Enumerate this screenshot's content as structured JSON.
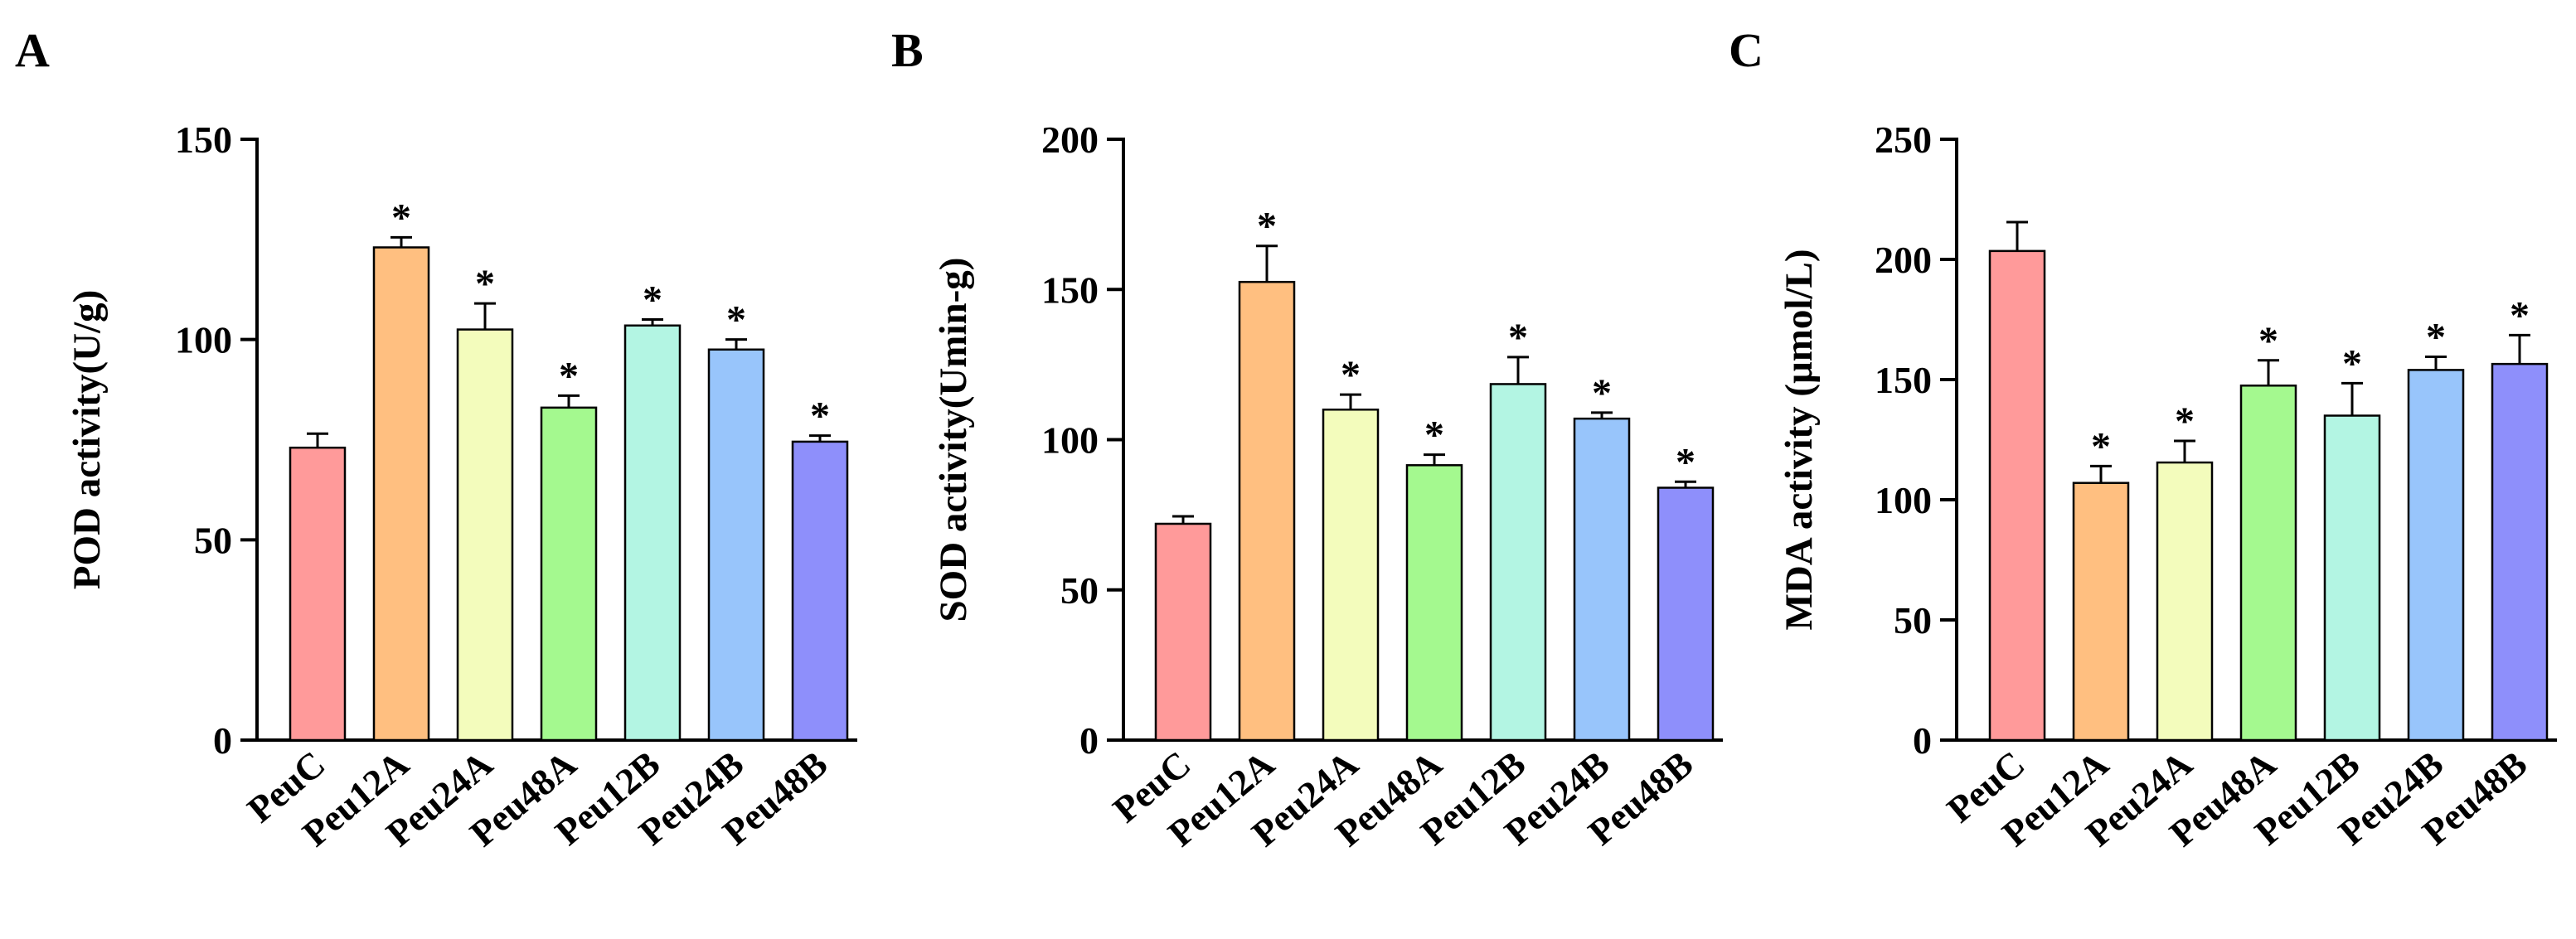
{
  "chart_data": [
    {
      "panel": "A",
      "type": "bar",
      "title": "",
      "xlabel": "",
      "ylabel": "POD activity(U/g)",
      "ylim": [
        0,
        150
      ],
      "yticks": [
        0,
        50,
        100,
        150
      ],
      "categories": [
        "PeuC",
        "Peu12A",
        "Peu24A",
        "Peu48A",
        "Peu12B",
        "Peu24B",
        "Peu48B"
      ],
      "values": [
        73,
        123,
        102.5,
        83,
        103.5,
        97.5,
        74.5
      ],
      "errors": [
        3.5,
        2.5,
        6.5,
        3,
        1.5,
        2.5,
        1.5
      ],
      "significance": [
        "",
        "*",
        "*",
        "*",
        "*",
        "*",
        "*"
      ],
      "colors": [
        "#ff9a9a",
        "#ffbf80",
        "#f3fcbc",
        "#a4f98f",
        "#b3f5e3",
        "#98c5fb",
        "#8e8ffb"
      ]
    },
    {
      "panel": "B",
      "type": "bar",
      "title": "",
      "xlabel": "",
      "ylabel": "SOD activity(Umin-g)",
      "ylim": [
        0,
        200
      ],
      "yticks": [
        0,
        50,
        100,
        150,
        200
      ],
      "categories": [
        "PeuC",
        "Peu12A",
        "Peu24A",
        "Peu48A",
        "Peu12B",
        "Peu24B",
        "Peu48B"
      ],
      "values": [
        72,
        152.5,
        110,
        91.5,
        118.5,
        107,
        84
      ],
      "errors": [
        2.5,
        12,
        5,
        3.5,
        9,
        2,
        2
      ],
      "significance": [
        "",
        "*",
        "*",
        "*",
        "*",
        "*",
        "*"
      ],
      "colors": [
        "#ff9a9a",
        "#ffbf80",
        "#f3fcbc",
        "#a4f98f",
        "#b3f5e3",
        "#98c5fb",
        "#8e8ffb"
      ]
    },
    {
      "panel": "C",
      "type": "bar",
      "title": "",
      "xlabel": "",
      "ylabel": "MDA activity (μmol/L)",
      "ylim": [
        0,
        250
      ],
      "yticks": [
        0,
        50,
        100,
        150,
        200,
        250
      ],
      "categories": [
        "PeuC",
        "Peu12A",
        "Peu24A",
        "Peu48A",
        "Peu12B",
        "Peu24B",
        "Peu48B"
      ],
      "values": [
        203.5,
        107,
        115.5,
        147.5,
        135,
        154,
        156.5
      ],
      "errors": [
        12,
        7,
        9,
        10.5,
        13.5,
        5.5,
        12
      ],
      "significance": [
        "",
        "*",
        "*",
        "*",
        "*",
        "*",
        "*"
      ],
      "colors": [
        "#ff9a9a",
        "#ffbf80",
        "#f3fcbc",
        "#a4f98f",
        "#b3f5e3",
        "#98c5fb",
        "#8e8ffb"
      ]
    }
  ]
}
